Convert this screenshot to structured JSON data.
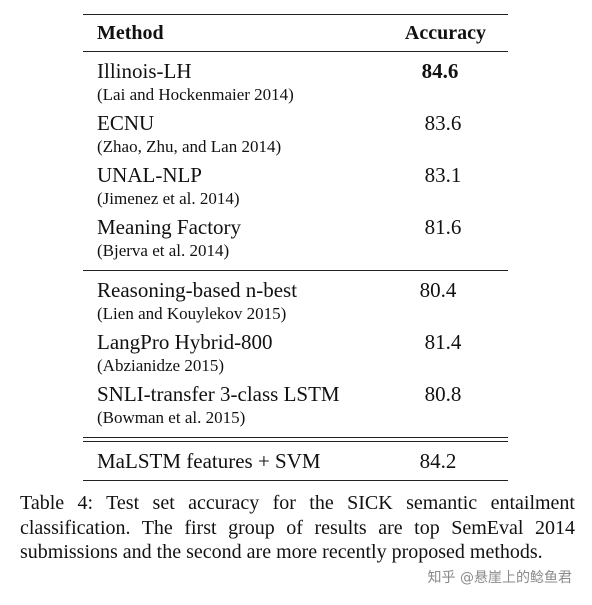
{
  "table": {
    "headers": {
      "method": "Method",
      "accuracy": "Accuracy"
    },
    "group1": [
      {
        "name": "Illinois-LH",
        "cite": "(Lai and Hockenmaier 2014)",
        "accuracy": "84.6",
        "best": true
      },
      {
        "name": "ECNU",
        "cite": "(Zhao, Zhu, and Lan 2014)",
        "accuracy": "83.6",
        "best": false
      },
      {
        "name": "UNAL-NLP",
        "cite": "(Jimenez et al. 2014)",
        "accuracy": "83.1",
        "best": false
      },
      {
        "name": "Meaning Factory",
        "cite": "(Bjerva et al. 2014)",
        "accuracy": "81.6",
        "best": false
      }
    ],
    "group2": [
      {
        "name": "Reasoning-based n-best",
        "cite": "(Lien and Kouylekov 2015)",
        "accuracy": "80.4"
      },
      {
        "name": "LangPro Hybrid-800",
        "cite": "(Abzianidze 2015)",
        "accuracy": "81.4"
      },
      {
        "name": "SNLI-transfer 3-class LSTM",
        "cite": "(Bowman et al. 2015)",
        "accuracy": "80.8"
      }
    ],
    "final": {
      "name": "MaLSTM features + SVM",
      "accuracy": "84.2"
    }
  },
  "caption": "Table 4: Test set accuracy for the SICK semantic entailment classification. The first group of results are top SemEval 2014 submissions and the second are more recently proposed methods.",
  "watermark": "知乎 @悬崖上的鲶鱼君"
}
